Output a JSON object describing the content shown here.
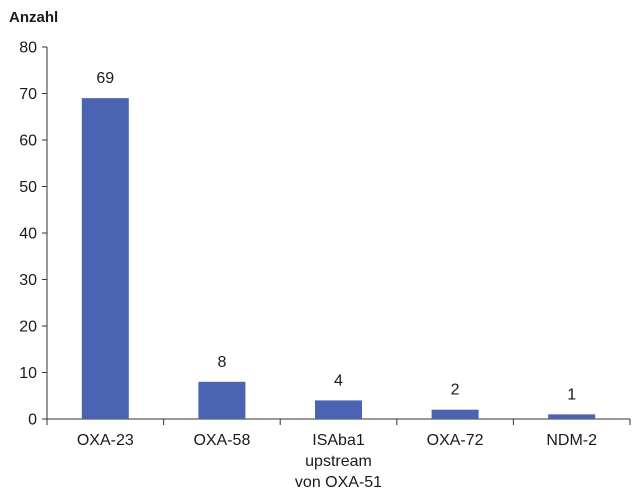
{
  "chart_data": {
    "type": "bar",
    "ylabel": "Anzahl",
    "xlabel": "",
    "title": "",
    "categories": [
      [
        "OXA-23"
      ],
      [
        "OXA-58"
      ],
      [
        "ISAba1",
        "upstream",
        "von OXA-51"
      ],
      [
        "OXA-72"
      ],
      [
        "NDM-2"
      ]
    ],
    "values": [
      69,
      8,
      4,
      2,
      1
    ],
    "data_labels": [
      "69",
      "8",
      "4",
      "2",
      "1"
    ],
    "ylim": [
      0,
      80
    ],
    "yticks": [
      "0",
      "10",
      "20",
      "30",
      "40",
      "50",
      "60",
      "70",
      "80"
    ],
    "grid": false,
    "legend": "none",
    "bar_color": "#4a63b3"
  }
}
